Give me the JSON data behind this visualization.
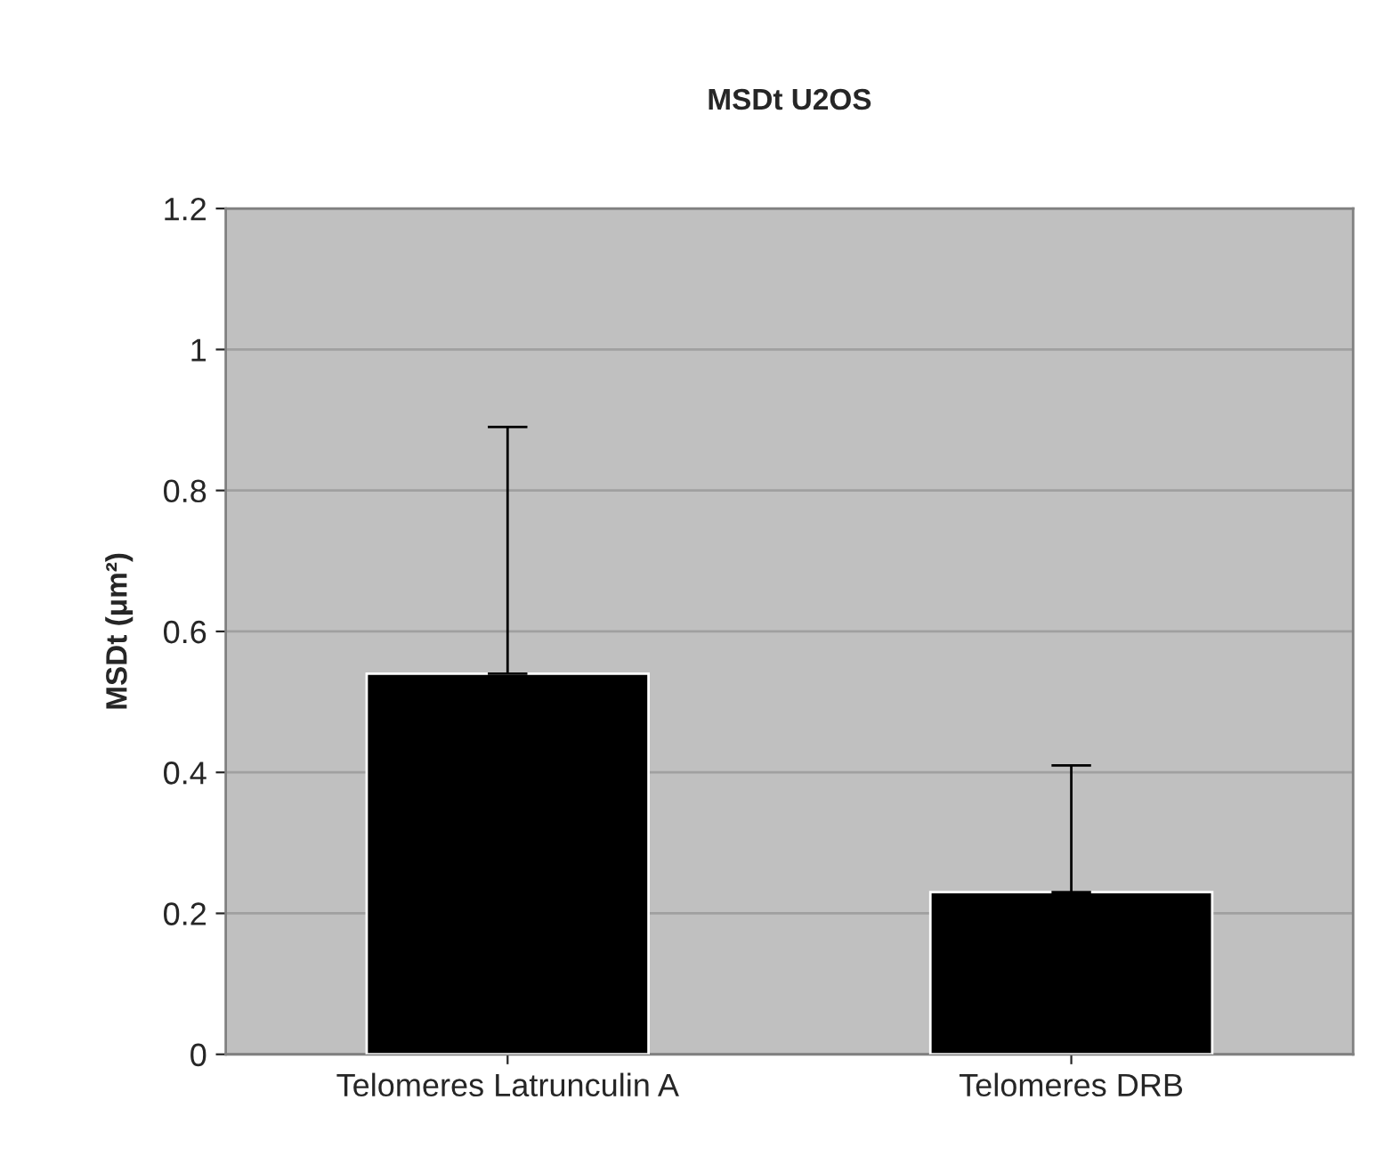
{
  "chart_data": {
    "type": "bar",
    "title": "MSDt U2OS",
    "ylabel": "MSDt (μm²)",
    "categories": [
      "Telomeres Latrunculin A",
      "Telomeres DRB"
    ],
    "values": [
      0.54,
      0.23
    ],
    "errors": [
      [
        0.54,
        0.89
      ],
      [
        0.23,
        0.41
      ]
    ],
    "color": "#000000",
    "ylim": [
      0,
      1.2
    ],
    "yticks": [
      0,
      0.2,
      0.4,
      0.6,
      0.8,
      1,
      1.2
    ],
    "grid": "y",
    "legend": false
  }
}
